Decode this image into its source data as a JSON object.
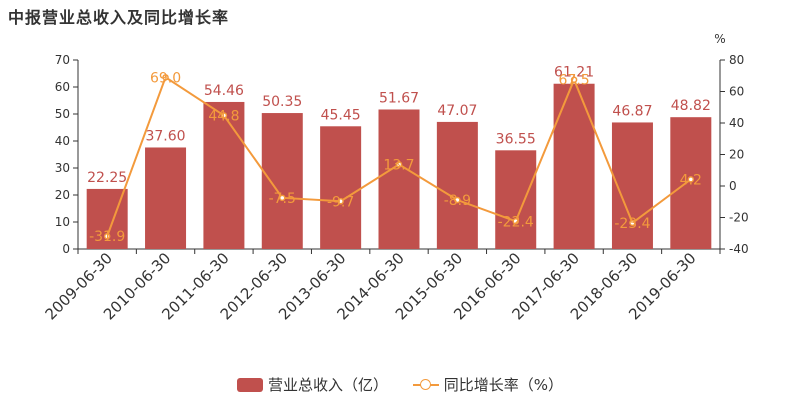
{
  "chart_data": {
    "type": "bar",
    "title": "中报营业总收入及同比增长率",
    "categories": [
      "2009-06-30",
      "2010-06-30",
      "2011-06-30",
      "2012-06-30",
      "2013-06-30",
      "2014-06-30",
      "2015-06-30",
      "2016-06-30",
      "2017-06-30",
      "2018-06-30",
      "2019-06-30"
    ],
    "series": [
      {
        "name": "营业总收入（亿）",
        "type": "bar",
        "axis": "left",
        "values": [
          22.25,
          37.6,
          54.46,
          50.35,
          45.45,
          51.67,
          47.07,
          36.55,
          61.21,
          46.87,
          48.82
        ],
        "labels": [
          "22.25",
          "37.60",
          "54.46",
          "50.35",
          "45.45",
          "51.67",
          "47.07",
          "36.55",
          "61.21",
          "46.87",
          "48.82"
        ]
      },
      {
        "name": "同比增长率（%）",
        "type": "line",
        "axis": "right",
        "values": [
          -31.9,
          69.0,
          44.8,
          -7.5,
          -9.7,
          13.7,
          -8.9,
          -22.4,
          67.5,
          -23.4,
          4.2
        ],
        "labels": [
          "-31.9",
          "69.0",
          "44.8",
          "-7.5",
          "-9.7",
          "13.7",
          "-8.9",
          "-22.4",
          "67.5",
          "-23.4",
          "4.2"
        ]
      }
    ],
    "y_left": {
      "ylim": [
        0,
        70
      ],
      "ticks": [
        0,
        10,
        20,
        30,
        40,
        50,
        60,
        70
      ]
    },
    "y_right": {
      "label": "%",
      "ylim": [
        -40,
        80
      ],
      "ticks": [
        -40,
        -20,
        0,
        20,
        40,
        60,
        80
      ]
    },
    "colors": {
      "bar": "#c0504d",
      "line": "#f39a3c",
      "axis": "#333333",
      "text": "#333333"
    },
    "legend_position": "bottom-center"
  }
}
